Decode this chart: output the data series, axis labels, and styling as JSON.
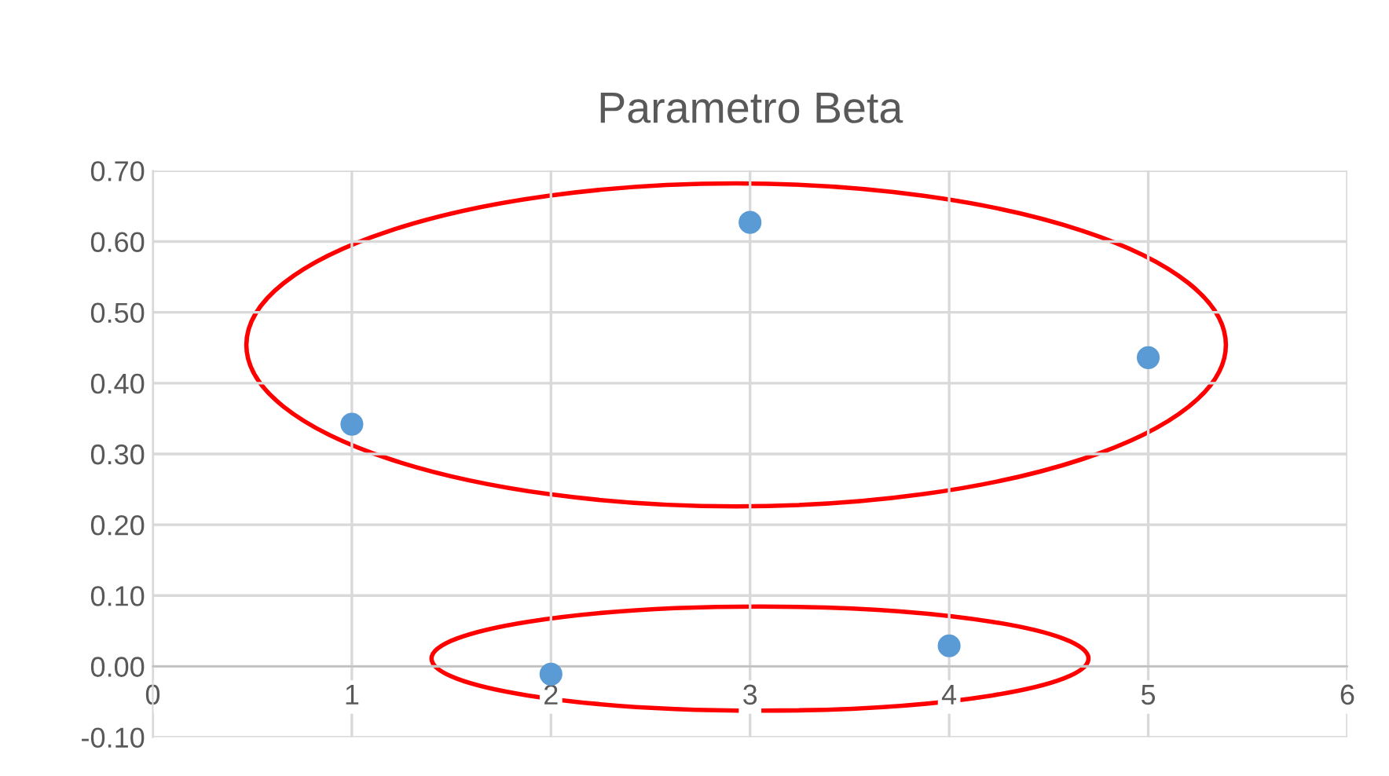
{
  "chart_data": {
    "type": "scatter",
    "title": "Parametro Beta",
    "series": [
      {
        "color": "#5b9bd5",
        "x": [
          1,
          2,
          3,
          4,
          5
        ],
        "values": [
          0.342,
          -0.011,
          0.627,
          0.029,
          0.436
        ]
      }
    ],
    "xlim": [
      0,
      6
    ],
    "xticks": [
      0,
      1,
      2,
      3,
      4,
      5,
      6
    ],
    "ylim": [
      -0.1,
      0.7
    ],
    "yticks": [
      {
        "value": -0.1,
        "label": "-0.10"
      },
      {
        "value": 0,
        "label": "0.00"
      },
      {
        "value": 0.1,
        "label": "0.10"
      },
      {
        "value": 0.2,
        "label": "0.20"
      },
      {
        "value": 0.3,
        "label": "0.30"
      },
      {
        "value": 0.4,
        "label": "0.40"
      },
      {
        "value": 0.5,
        "label": "0.50"
      },
      {
        "value": 0.6,
        "label": "0.60"
      },
      {
        "value": 0.7,
        "label": "0.70"
      }
    ],
    "grid": true,
    "marker": "circle"
  }
}
